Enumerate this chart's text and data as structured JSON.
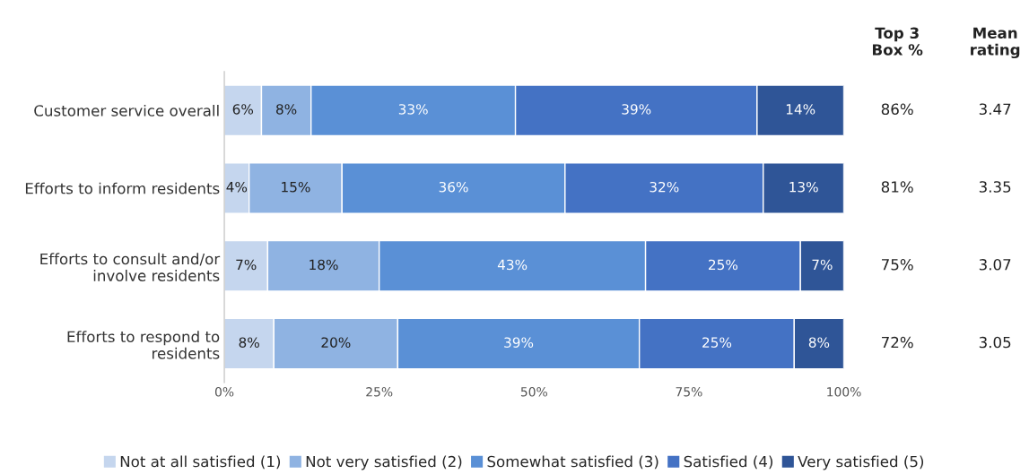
{
  "chart_data": {
    "type": "bar",
    "orientation": "horizontal",
    "stacked": true,
    "categories": [
      "Customer service overall",
      "Efforts to inform residents",
      "Efforts to consult and/or\ninvolve residents",
      "Efforts to respond to\nresidents"
    ],
    "series": [
      {
        "name": "Not at all satisfied (1)",
        "color": "#c5d6ee",
        "values": [
          6,
          4,
          7,
          8
        ],
        "value_labels": [
          "6%",
          "4%",
          "7%",
          "8%"
        ]
      },
      {
        "name": "Not very satisfied (2)",
        "color": "#8fb3e2",
        "values": [
          8,
          15,
          18,
          20
        ],
        "value_labels": [
          "8%",
          "15%",
          "18%",
          "20%"
        ]
      },
      {
        "name": "Somewhat satisfied (3)",
        "color": "#5a90d6",
        "values": [
          33,
          36,
          43,
          39
        ],
        "value_labels": [
          "33%",
          "36%",
          "43%",
          "39%"
        ]
      },
      {
        "name": "Satisfied (4)",
        "color": "#4472c4",
        "values": [
          39,
          32,
          25,
          25
        ],
        "value_labels": [
          "39%",
          "32%",
          "25%",
          "25%"
        ]
      },
      {
        "name": "Very satisfied (5)",
        "color": "#2f5597",
        "values": [
          14,
          13,
          7,
          8
        ],
        "value_labels": [
          "14%",
          "13%",
          "7%",
          "8%"
        ]
      }
    ],
    "xlim": [
      0,
      100
    ],
    "xticks": [
      {
        "value": 0,
        "label": "0%"
      },
      {
        "value": 25,
        "label": "25%"
      },
      {
        "value": 50,
        "label": "50%"
      },
      {
        "value": 75,
        "label": "75%"
      },
      {
        "value": 100,
        "label": "100%"
      }
    ],
    "grid": false,
    "legend": "bottom",
    "annotations": [
      "Top 3\nBox %",
      "Mean\nrating",
      "86%",
      "3.47",
      "81%",
      "3.35",
      "75%",
      "3.07",
      "72%",
      "3.05"
    ]
  }
}
